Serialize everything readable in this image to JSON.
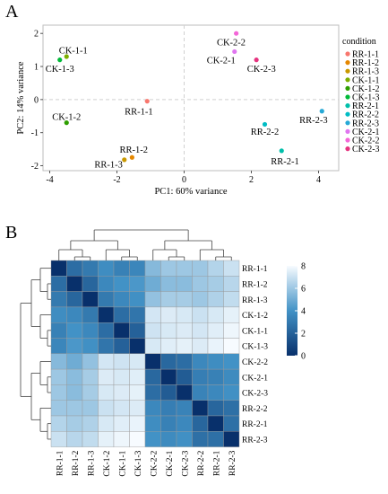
{
  "panels": {
    "a": "A",
    "b": "B"
  },
  "chart_data": [
    {
      "type": "scatter",
      "xlabel": "PC1: 60% variance",
      "ylabel": "PC2: 14% variance",
      "xlim": [
        -4.2,
        4.6
      ],
      "ylim": [
        -2.15,
        2.25
      ],
      "xticks": [
        -4,
        -2,
        0,
        2,
        4
      ],
      "yticks": [
        -2,
        -1,
        0,
        1,
        2
      ],
      "zero_lines": true,
      "legend": {
        "title": "condition",
        "position": "right",
        "items": [
          {
            "name": "RR-1-1",
            "color": "#F8766D"
          },
          {
            "name": "RR-1-2",
            "color": "#E58700"
          },
          {
            "name": "RR-1-3",
            "color": "#C99800"
          },
          {
            "name": "CK-1-1",
            "color": "#7CAE00"
          },
          {
            "name": "CK-1-2",
            "color": "#2E9E00"
          },
          {
            "name": "CK-1-3",
            "color": "#00BA38"
          },
          {
            "name": "RR-2-1",
            "color": "#00BFAA"
          },
          {
            "name": "RR-2-2",
            "color": "#00BCC4"
          },
          {
            "name": "RR-2-3",
            "color": "#26A9D6"
          },
          {
            "name": "CK-2-1",
            "color": "#E076F0"
          },
          {
            "name": "CK-2-2",
            "color": "#F466D8"
          },
          {
            "name": "CK-2-3",
            "color": "#E6337F"
          }
        ]
      },
      "points": [
        {
          "name": "RR-1-1",
          "x": -1.1,
          "y": -0.05,
          "color": "#F8766D",
          "label": "RR-1-1",
          "lx": -1.35,
          "ly": -0.35
        },
        {
          "name": "RR-1-2",
          "x": -1.55,
          "y": -1.75,
          "color": "#E58700",
          "label": "RR-1-2",
          "lx": -1.5,
          "ly": -1.5
        },
        {
          "name": "RR-1-3",
          "x": -1.78,
          "y": -1.82,
          "color": "#C99800",
          "label": "RR-1-3",
          "lx": -2.25,
          "ly": -1.95
        },
        {
          "name": "CK-1-1",
          "x": -3.5,
          "y": 1.3,
          "color": "#7CAE00",
          "label": "CK-1-1",
          "lx": -3.3,
          "ly": 1.5
        },
        {
          "name": "CK-1-2",
          "x": -3.5,
          "y": -0.7,
          "color": "#2E9E00",
          "label": "CK-1-2",
          "lx": -3.5,
          "ly": -0.5
        },
        {
          "name": "CK-1-3",
          "x": -3.7,
          "y": 1.2,
          "color": "#00BA38",
          "label": "CK-1-3",
          "lx": -3.7,
          "ly": 0.95
        },
        {
          "name": "RR-2-1",
          "x": 2.9,
          "y": -1.55,
          "color": "#00BFAA",
          "label": "RR-2-1",
          "lx": 3.0,
          "ly": -1.85
        },
        {
          "name": "RR-2-2",
          "x": 2.4,
          "y": -0.75,
          "color": "#00BCC4",
          "label": "RR-2-2",
          "lx": 2.4,
          "ly": -0.95
        },
        {
          "name": "RR-2-3",
          "x": 4.1,
          "y": -0.35,
          "color": "#26A9D6",
          "label": "RR-2-3",
          "lx": 3.85,
          "ly": -0.6
        },
        {
          "name": "CK-2-1",
          "x": 1.5,
          "y": 1.45,
          "color": "#E076F0",
          "label": "CK-2-1",
          "lx": 1.1,
          "ly": 1.2
        },
        {
          "name": "CK-2-2",
          "x": 1.55,
          "y": 2.0,
          "color": "#F466D8",
          "label": "CK-2-2",
          "lx": 1.4,
          "ly": 1.75
        },
        {
          "name": "CK-2-3",
          "x": 2.15,
          "y": 1.2,
          "color": "#E6337F",
          "label": "CK-2-3",
          "lx": 2.3,
          "ly": 0.95
        }
      ]
    },
    {
      "type": "heatmap",
      "rows": [
        "RR-1-1",
        "RR-1-2",
        "RR-1-3",
        "CK-1-2",
        "CK-1-1",
        "CK-1-3",
        "CK-2-2",
        "CK-2-1",
        "CK-2-3",
        "RR-2-2",
        "RR-2-1",
        "RR-2-3"
      ],
      "columns": [
        "RR-1-1",
        "RR-1-2",
        "RR-1-3",
        "CK-1-2",
        "CK-1-1",
        "CK-1-3",
        "CK-2-2",
        "CK-2-1",
        "CK-2-3",
        "RR-2-2",
        "RR-2-1",
        "RR-2-3"
      ],
      "values": [
        [
          0,
          2.5,
          3,
          3.8,
          3.3,
          3.5,
          5.5,
          6,
          6,
          6,
          6.5,
          7
        ],
        [
          2.5,
          0,
          2.2,
          3.6,
          4,
          4.2,
          5,
          5.6,
          5.6,
          6,
          6.2,
          6.6
        ],
        [
          3,
          2.2,
          0,
          3,
          3.6,
          3.9,
          5.8,
          6.2,
          6.2,
          6,
          6.4,
          6.8
        ],
        [
          3.8,
          3.6,
          3,
          0,
          2.5,
          2.8,
          7.2,
          7.4,
          7.3,
          7,
          7.3,
          7.6
        ],
        [
          3.3,
          4,
          3.6,
          2.5,
          0,
          2,
          7.1,
          7.3,
          7.4,
          7.2,
          7.5,
          7.8
        ],
        [
          3.5,
          4.2,
          3.9,
          2.8,
          2,
          0,
          7.3,
          7.5,
          7.6,
          7.4,
          7.7,
          8
        ],
        [
          5.5,
          5,
          5.8,
          7.2,
          7.1,
          7.3,
          0,
          2.3,
          2.5,
          3.6,
          3.8,
          4
        ],
        [
          6,
          5.6,
          6.2,
          7.4,
          7.3,
          7.5,
          2.3,
          0,
          1.8,
          3.2,
          3.3,
          3.7
        ],
        [
          6,
          5.6,
          6.2,
          7.3,
          7.4,
          7.6,
          2.5,
          1.8,
          0,
          3.4,
          3.6,
          3.9
        ],
        [
          6,
          6,
          6,
          7,
          7.2,
          7.4,
          3.6,
          3.2,
          3.4,
          0,
          2.2,
          2.6
        ],
        [
          6.5,
          6.2,
          6.4,
          7.3,
          7.5,
          7.7,
          3.8,
          3.3,
          3.6,
          2.2,
          0,
          2.6
        ],
        [
          7,
          6.6,
          6.8,
          7.6,
          7.8,
          8,
          4,
          3.7,
          3.9,
          2.6,
          2.6,
          0
        ]
      ],
      "color_scale": {
        "min": 0,
        "max": 8,
        "ticks": [
          0,
          2,
          4,
          6,
          8
        ],
        "low_color": "#08306B",
        "mid_color": "#4292C6",
        "high_color": "#F7FBFF"
      },
      "dendrogram": true
    }
  ]
}
